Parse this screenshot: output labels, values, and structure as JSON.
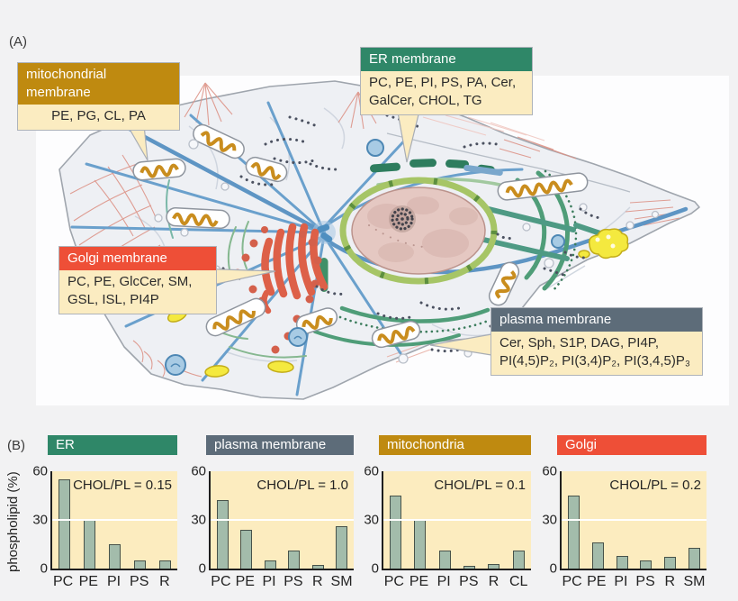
{
  "panel_a": {
    "label": "(A)",
    "callouts": [
      {
        "title": "mitochondrial membrane",
        "lipids": "PE, PG, CL, PA",
        "color": "#bf8a10"
      },
      {
        "title": "ER membrane",
        "lipids": "PC, PE, PI, PS, PA, Cer,\nGalCer, CHOL, TG",
        "color": "#2f8768"
      },
      {
        "title": "Golgi membrane",
        "lipids": "PC, PE, GlcCer, SM,\nGSL, ISL, PI4P",
        "color": "#ee4f37"
      },
      {
        "title": "plasma membrane",
        "lipids": "Cer, Sph, S1P, DAG, PI4P,\nPI(4,5)P₂, PI(3,4)P₂, PI(3,4,5)P₃",
        "color": "#5d6c79"
      }
    ]
  },
  "panel_b": {
    "label": "(B)",
    "ylabel": "phospholipid (%)"
  },
  "chart_data": [
    {
      "type": "bar",
      "title": "ER",
      "title_color": "#2f8768",
      "annotation": "CHOL/PL = 0.15",
      "chol_pl_ratio": 0.15,
      "categories": [
        "PC",
        "PE",
        "PI",
        "PS",
        "R"
      ],
      "values": [
        55,
        30,
        15,
        5,
        5
      ],
      "ylabel": "phospholipid (%)",
      "ylim": [
        0,
        60
      ],
      "yticks": [
        0,
        30,
        60
      ],
      "gridlines": [
        30
      ]
    },
    {
      "type": "bar",
      "title": "plasma membrane",
      "title_color": "#5d6c79",
      "annotation": "CHOL/PL = 1.0",
      "chol_pl_ratio": 1.0,
      "categories": [
        "PC",
        "PE",
        "PI",
        "PS",
        "R",
        "SM"
      ],
      "values": [
        42,
        24,
        5,
        11,
        2,
        26
      ],
      "ylabel": "phospholipid (%)",
      "ylim": [
        0,
        60
      ],
      "yticks": [
        0,
        30,
        60
      ],
      "gridlines": [
        30
      ]
    },
    {
      "type": "bar",
      "title": "mitochondria",
      "title_color": "#bf8a10",
      "annotation": "CHOL/PL = 0.1",
      "chol_pl_ratio": 0.1,
      "categories": [
        "PC",
        "PE",
        "PI",
        "PS",
        "R",
        "CL"
      ],
      "values": [
        45,
        30,
        11,
        1.5,
        3,
        11
      ],
      "ylabel": "phospholipid (%)",
      "ylim": [
        0,
        60
      ],
      "yticks": [
        0,
        30,
        60
      ],
      "gridlines": [
        30
      ]
    },
    {
      "type": "bar",
      "title": "Golgi",
      "title_color": "#ee4f37",
      "annotation": "CHOL/PL = 0.2",
      "chol_pl_ratio": 0.2,
      "categories": [
        "PC",
        "PE",
        "PI",
        "PS",
        "R",
        "SM"
      ],
      "values": [
        45,
        16,
        8,
        5,
        7,
        13
      ],
      "ylabel": "phospholipid (%)",
      "ylim": [
        0,
        60
      ],
      "yticks": [
        0,
        30,
        60
      ],
      "gridlines": [
        30
      ]
    }
  ],
  "chart_style": {
    "bar_color": "#a3bcab",
    "bar_border": "#47524a",
    "plot_bg": "#fcecbf",
    "gridline_color": "#ffffff"
  }
}
